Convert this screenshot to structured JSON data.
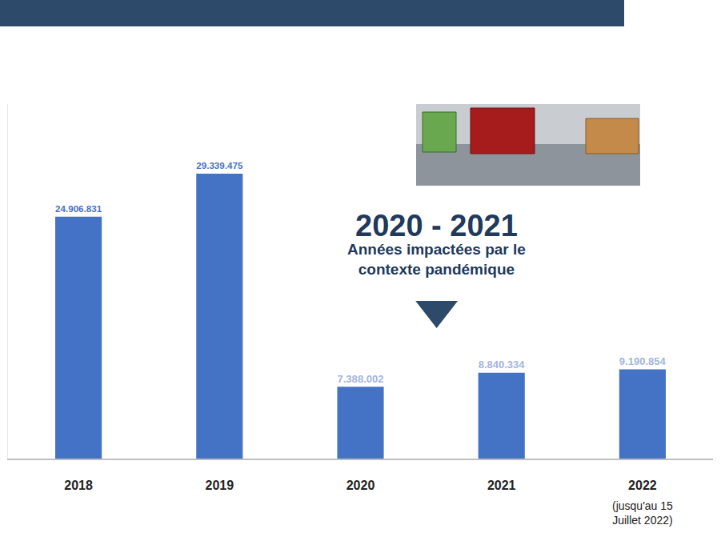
{
  "chart_data": {
    "type": "bar",
    "categories": [
      "2018",
      "2019",
      "2020",
      "2021",
      "2022"
    ],
    "values": [
      24906831,
      29339475,
      7388002,
      8840334,
      9190854
    ],
    "value_labels": [
      "24.906.831",
      "29.339.475",
      "7.388.002",
      "8.840.334",
      "9.190.854"
    ],
    "color": "#4472c4",
    "ylim": [
      0,
      36500000
    ],
    "yticks": [],
    "grid": false,
    "data_labels": true,
    "tick_labels": "x",
    "annotations": [
      {
        "text": "2020 - 2021"
      },
      {
        "text": "Années impactées par le contexte pandémique"
      },
      {
        "text": "(jusqu'au 15 Juillet 2022)"
      }
    ]
  }
}
